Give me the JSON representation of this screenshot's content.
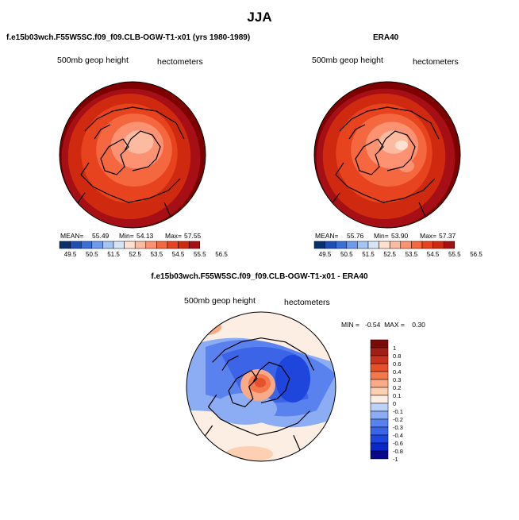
{
  "header": {
    "title": "JJA"
  },
  "colors": {
    "abs_scale": [
      "#08306b",
      "#1f4fb5",
      "#3a6fd8",
      "#6d9bea",
      "#a6c4f2",
      "#d6e4f8",
      "#fde0d0",
      "#fcbba1",
      "#fc9272",
      "#f4673f",
      "#e8431f",
      "#cf2a10",
      "#a50f15",
      "#7f0000"
    ],
    "diff_scale": [
      "#08088c",
      "#0a28c8",
      "#1e46dc",
      "#3c64e6",
      "#5a82ee",
      "#8cacf4",
      "#bed2f8",
      "#fdeee4",
      "#fdd0b4",
      "#fbaa88",
      "#f4784e",
      "#e6502a",
      "#c8321e",
      "#a01e14",
      "#7a0a08"
    ]
  },
  "panels": [
    {
      "title": "f.e15b03wch.F55W5SC.f09_f09.CLB-OGW-T1-x01 (yrs 1980-1989)",
      "variable": "500mb geop height",
      "units": "hectometers",
      "stats": {
        "mean_label": "MEAN=",
        "mean": "55.49",
        "min_label": "Min=",
        "min": "54.13",
        "max_label": "Max=",
        "max": "57.55"
      },
      "colorbar_ticks": [
        "49.5",
        "50.5",
        "51.5",
        "52.5",
        "53.5",
        "54.5",
        "55.5",
        "56.5"
      ]
    },
    {
      "title": "ERA40",
      "variable": "500mb geop height",
      "units": "hectometers",
      "stats": {
        "mean_label": "MEAN=",
        "mean": "55.76",
        "min_label": "Min=",
        "min": "53.90",
        "max_label": "Max=",
        "max": "57.37"
      },
      "colorbar_ticks": [
        "49.5",
        "50.5",
        "51.5",
        "52.5",
        "53.5",
        "54.5",
        "55.5",
        "56.5"
      ]
    },
    {
      "title": "f.e15b03wch.F55W5SC.f09_f09.CLB-OGW-T1-x01 - ERA40",
      "variable": "500mb geop height",
      "units": "hectometers",
      "stats_text": "MIN =   -0.54  MAX =    0.30",
      "colorbar_ticks": [
        "1",
        "0.8",
        "0.6",
        "0.4",
        "0.3",
        "0.2",
        "0.1",
        "0",
        "-0.1",
        "-0.2",
        "-0.3",
        "-0.4",
        "-0.6",
        "-0.8",
        "-1"
      ]
    }
  ]
}
